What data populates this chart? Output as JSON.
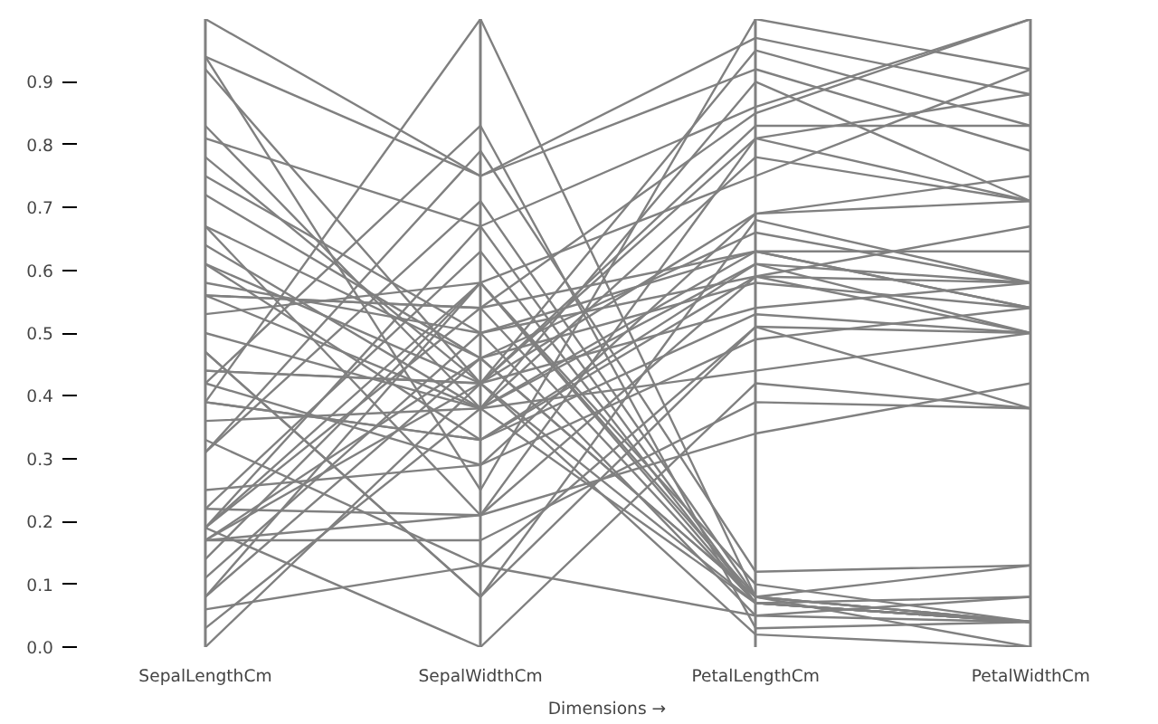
{
  "chart_data": {
    "type": "line",
    "xlabel": "Dimensions →",
    "categories": [
      "SepalLengthCm",
      "SepalWidthCm",
      "PetalLengthCm",
      "PetalWidthCm"
    ],
    "ylim": [
      0,
      1
    ],
    "yticks": [
      {
        "value": 0,
        "label": "0.0"
      },
      0.1,
      0.2,
      0.3,
      0.4,
      0.5,
      0.6,
      0.7,
      0.8,
      0.9
    ],
    "grid": "x",
    "series": [
      {
        "color": "#808080",
        "values": [
          0.22,
          0.63,
          0.07,
          0.04
        ]
      },
      {
        "color": "#808080",
        "values": [
          0.17,
          0.42,
          0.07,
          0.04
        ]
      },
      {
        "color": "#808080",
        "values": [
          0.11,
          0.5,
          0.05,
          0.04
        ]
      },
      {
        "color": "#808080",
        "values": [
          0.08,
          0.46,
          0.08,
          0.04
        ]
      },
      {
        "color": "#808080",
        "values": [
          0.19,
          0.67,
          0.07,
          0.04
        ]
      },
      {
        "color": "#808080",
        "values": [
          0.31,
          0.79,
          0.12,
          0.13
        ]
      },
      {
        "color": "#808080",
        "values": [
          0.08,
          0.58,
          0.07,
          0.08
        ]
      },
      {
        "color": "#808080",
        "values": [
          0.19,
          0.58,
          0.08,
          0.04
        ]
      },
      {
        "color": "#808080",
        "values": [
          0.03,
          0.38,
          0.07,
          0.04
        ]
      },
      {
        "color": "#808080",
        "values": [
          0.17,
          0.46,
          0.08,
          0
        ]
      },
      {
        "color": "#808080",
        "values": [
          0.31,
          0.71,
          0.08,
          0.04
        ]
      },
      {
        "color": "#808080",
        "values": [
          0.14,
          0.58,
          0.1,
          0.04
        ]
      },
      {
        "color": "#808080",
        "values": [
          0,
          0.42,
          0.02,
          0
        ]
      },
      {
        "color": "#808080",
        "values": [
          0.42,
          0.83,
          0.03,
          0.04
        ]
      },
      {
        "color": "#808080",
        "values": [
          0.39,
          1,
          0.08,
          0.13
        ]
      },
      {
        "color": "#808080",
        "values": [
          0.06,
          0.13,
          0.05,
          0.08
        ]
      },
      {
        "color": "#808080",
        "values": [
          0.19,
          0.54,
          0.07,
          0.04
        ]
      },
      {
        "color": "#808080",
        "values": [
          0.75,
          0.5,
          0.63,
          0.54
        ]
      },
      {
        "color": "#808080",
        "values": [
          0.58,
          0.5,
          0.59,
          0.58
        ]
      },
      {
        "color": "#808080",
        "values": [
          0.72,
          0.46,
          0.66,
          0.58
        ]
      },
      {
        "color": "#808080",
        "values": [
          0.33,
          0.13,
          0.51,
          0.5
        ]
      },
      {
        "color": "#808080",
        "values": [
          0.61,
          0.33,
          0.61,
          0.58
        ]
      },
      {
        "color": "#808080",
        "values": [
          0.39,
          0.33,
          0.59,
          0.5
        ]
      },
      {
        "color": "#808080",
        "values": [
          0.56,
          0.54,
          0.63,
          0.63
        ]
      },
      {
        "color": "#808080",
        "values": [
          0.17,
          0.17,
          0.39,
          0.38
        ]
      },
      {
        "color": "#808080",
        "values": [
          0.64,
          0.38,
          0.61,
          0.5
        ]
      },
      {
        "color": "#808080",
        "values": [
          0.25,
          0.29,
          0.49,
          0.54
        ]
      },
      {
        "color": "#808080",
        "values": [
          0.19,
          0,
          0.42,
          0.38
        ]
      },
      {
        "color": "#808080",
        "values": [
          0.44,
          0.42,
          0.54,
          0.58
        ]
      },
      {
        "color": "#808080",
        "values": [
          0.47,
          0.08,
          0.51,
          0.38
        ]
      },
      {
        "color": "#808080",
        "values": [
          0.5,
          0.38,
          0.63,
          0.54
        ]
      },
      {
        "color": "#808080",
        "values": [
          0.36,
          0.38,
          0.44,
          0.5
        ]
      },
      {
        "color": "#808080",
        "values": [
          0.67,
          0.46,
          0.58,
          0.54
        ]
      },
      {
        "color": "#808080",
        "values": [
          0.22,
          0.21,
          0.34,
          0.42
        ]
      },
      {
        "color": "#808080",
        "values": [
          0.39,
          0.33,
          0.53,
          0.5
        ]
      },
      {
        "color": "#808080",
        "values": [
          0.56,
          0.54,
          0.85,
          1
        ]
      },
      {
        "color": "#808080",
        "values": [
          0.42,
          0.29,
          0.69,
          0.75
        ]
      },
      {
        "color": "#808080",
        "values": [
          0.78,
          0.42,
          0.83,
          0.83
        ]
      },
      {
        "color": "#808080",
        "values": [
          0.56,
          0.38,
          0.78,
          0.71
        ]
      },
      {
        "color": "#808080",
        "values": [
          0.61,
          0.42,
          0.81,
          0.88
        ]
      },
      {
        "color": "#808080",
        "values": [
          0.92,
          0.42,
          0.95,
          0.83
        ]
      },
      {
        "color": "#808080",
        "values": [
          0.17,
          0.21,
          0.59,
          0.67
        ]
      },
      {
        "color": "#808080",
        "values": [
          0.83,
          0.38,
          0.9,
          0.71
        ]
      },
      {
        "color": "#808080",
        "values": [
          0.67,
          0.21,
          0.81,
          0.71
        ]
      },
      {
        "color": "#808080",
        "values": [
          0.81,
          0.67,
          0.86,
          1
        ]
      },
      {
        "color": "#808080",
        "values": [
          0.94,
          0.75,
          0.97,
          0.88
        ]
      },
      {
        "color": "#808080",
        "values": [
          0.94,
          0.25,
          1,
          0.92
        ]
      },
      {
        "color": "#808080",
        "values": [
          0.47,
          0.08,
          0.68,
          0.58
        ]
      },
      {
        "color": "#808080",
        "values": [
          1,
          0.75,
          0.92,
          0.79
        ]
      },
      {
        "color": "#808080",
        "values": [
          0.53,
          0.58,
          0.75,
          0.92
        ]
      },
      {
        "color": "#808080",
        "values": [
          0.44,
          0.42,
          0.69,
          0.71
        ]
      }
    ]
  }
}
